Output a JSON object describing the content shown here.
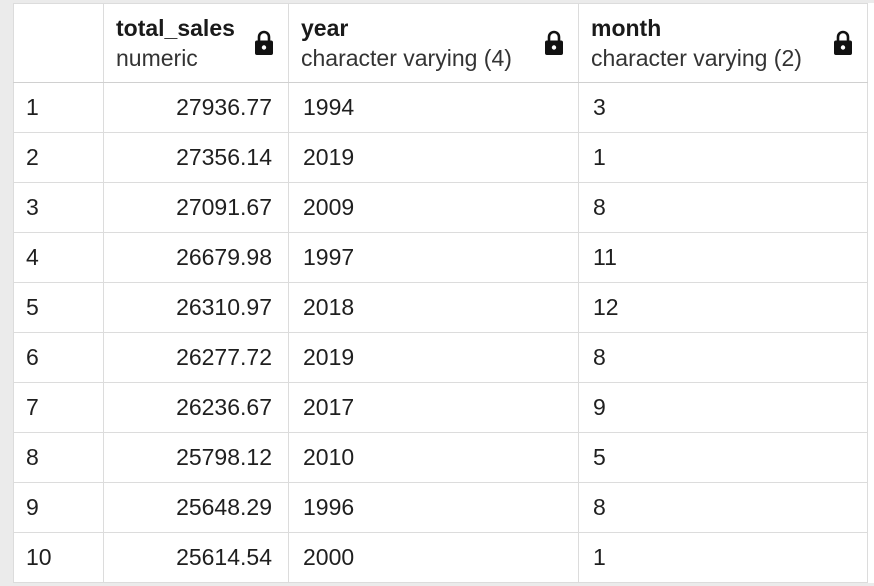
{
  "columns": [
    {
      "name": "",
      "type": ""
    },
    {
      "name": "total_sales",
      "type": "numeric",
      "icon": "lock-icon"
    },
    {
      "name": "year",
      "type": "character varying (4)",
      "icon": "lock-icon"
    },
    {
      "name": "month",
      "type": "character varying (2)",
      "icon": "lock-icon"
    }
  ],
  "rows": [
    {
      "n": "1",
      "total_sales": "27936.77",
      "year": "1994",
      "month": "3"
    },
    {
      "n": "2",
      "total_sales": "27356.14",
      "year": "2019",
      "month": "1"
    },
    {
      "n": "3",
      "total_sales": "27091.67",
      "year": "2009",
      "month": "8"
    },
    {
      "n": "4",
      "total_sales": "26679.98",
      "year": "1997",
      "month": "11"
    },
    {
      "n": "5",
      "total_sales": "26310.97",
      "year": "2018",
      "month": "12"
    },
    {
      "n": "6",
      "total_sales": "26277.72",
      "year": "2019",
      "month": "8"
    },
    {
      "n": "7",
      "total_sales": "26236.67",
      "year": "2017",
      "month": "9"
    },
    {
      "n": "8",
      "total_sales": "25798.12",
      "year": "2010",
      "month": "5"
    },
    {
      "n": "9",
      "total_sales": "25648.29",
      "year": "1996",
      "month": "8"
    },
    {
      "n": "10",
      "total_sales": "25614.54",
      "year": "2000",
      "month": "1"
    }
  ]
}
